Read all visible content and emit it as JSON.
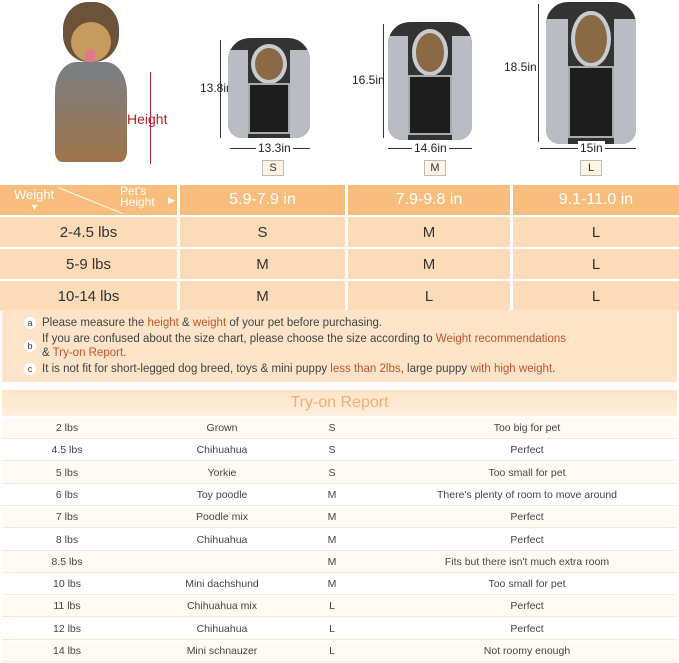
{
  "hero": {
    "height_label": "Height",
    "accent": "#b5202a"
  },
  "products": [
    {
      "size": "S",
      "height": "13.8in",
      "width": "13.3in"
    },
    {
      "size": "M",
      "height": "16.5in",
      "width": "14.6in"
    },
    {
      "size": "L",
      "height": "18.5in",
      "width": "15in"
    }
  ],
  "size_chart": {
    "corner_weight": "Weight",
    "corner_height": "Pet's Height",
    "columns": [
      "5.9-7.9 in",
      "7.9-9.8 in",
      "9.1-11.0 in"
    ],
    "rows": [
      {
        "weight": "2-4.5 lbs",
        "sizes": [
          "S",
          "M",
          "L"
        ]
      },
      {
        "weight": "5-9 lbs",
        "sizes": [
          "M",
          "M",
          "L"
        ]
      },
      {
        "weight": "10-14 lbs",
        "sizes": [
          "M",
          "L",
          "L"
        ]
      }
    ]
  },
  "notes": {
    "a": {
      "badge": "a",
      "t1": "Please measure the ",
      "h1": "height",
      "t2": " & ",
      "h2": "weight",
      "t3": " of your pet before purchasing."
    },
    "b": {
      "badge": "b",
      "t1": "If you are confused about the size chart, please choose the size according to ",
      "h1": "Weight recommendations",
      "t2": "& ",
      "h2": "Try-on Report."
    },
    "c": {
      "badge": "c",
      "t1": "It is not fit for short-legged dog breed, toys & mini puppy ",
      "h1": "less than 2lbs",
      "t2": ", large puppy ",
      "h2": "with high weight",
      "t3": "."
    }
  },
  "try_on": {
    "title": "Try-on Report",
    "rows": [
      [
        "2 lbs",
        "Grown",
        "S",
        "Too big for pet"
      ],
      [
        "4.5 lbs",
        "Chihuahua",
        "S",
        "Perfect"
      ],
      [
        "5 lbs",
        "Yorkie",
        "S",
        "Too small for pet"
      ],
      [
        "6 lbs",
        "Toy poodle",
        "M",
        "There's plenty of room to move around"
      ],
      [
        "7 lbs",
        "Poodle mix",
        "M",
        "Perfect"
      ],
      [
        "8 lbs",
        "Chihuahua",
        "M",
        "Perfect"
      ],
      [
        "8.5 lbs",
        "",
        "M",
        "Fits but there isn't much extra room"
      ],
      [
        "10 lbs",
        "Mini dachshund",
        "M",
        "Too small for pet"
      ],
      [
        "11 lbs",
        "Chihuahua mix",
        "L",
        "Perfect"
      ],
      [
        "12 lbs",
        "Chihuahua",
        "L",
        "Perfect"
      ],
      [
        "14 lbs",
        "Mini schnauzer",
        "L",
        "Not roomy enough"
      ]
    ]
  }
}
